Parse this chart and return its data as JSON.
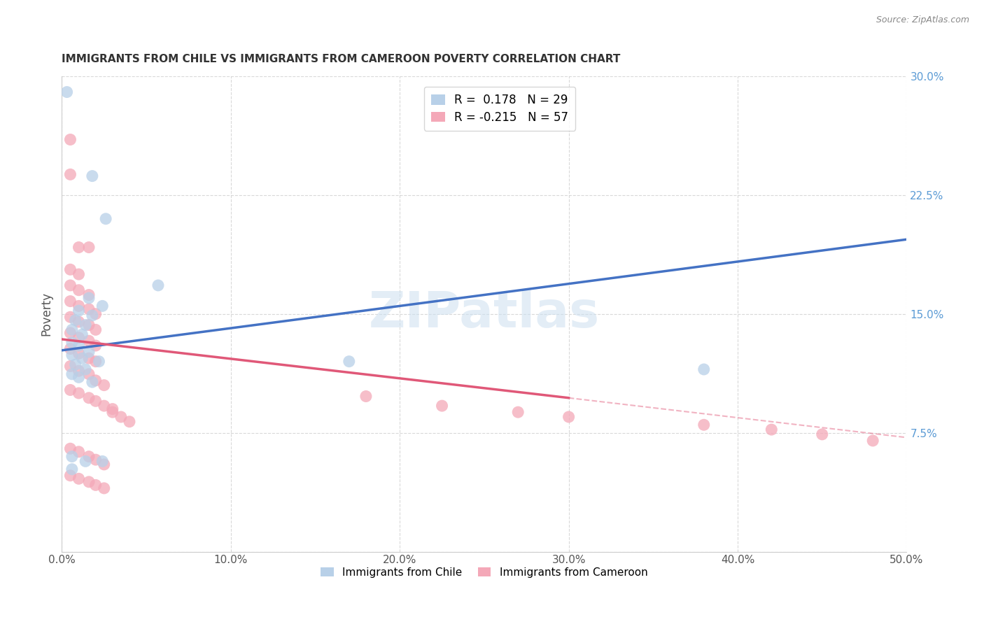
{
  "title": "IMMIGRANTS FROM CHILE VS IMMIGRANTS FROM CAMEROON POVERTY CORRELATION CHART",
  "source": "Source: ZipAtlas.com",
  "ylabel": "Poverty",
  "xlim": [
    0.0,
    0.5
  ],
  "ylim": [
    0.0,
    0.3
  ],
  "xticks": [
    0.0,
    0.1,
    0.2,
    0.3,
    0.4,
    0.5
  ],
  "xtick_labels": [
    "0.0%",
    "10.0%",
    "20.0%",
    "30.0%",
    "40.0%",
    "50.0%"
  ],
  "yticks": [
    0.0,
    0.075,
    0.15,
    0.225,
    0.3
  ],
  "ytick_labels": [
    "",
    "7.5%",
    "15.0%",
    "22.5%",
    "30.0%"
  ],
  "watermark": "ZIPatlas",
  "chile_color": "#b8d0e8",
  "chile_line_color": "#4472c4",
  "cameroon_color": "#f4a8b8",
  "cameroon_line_color": "#e05878",
  "chile_line": {
    "x0": 0.0,
    "y0": 0.127,
    "x1": 0.5,
    "y1": 0.197
  },
  "cameroon_line_solid": {
    "x0": 0.0,
    "y0": 0.134,
    "x1": 0.3,
    "y1": 0.097
  },
  "cameroon_line_dash": {
    "x0": 0.3,
    "y0": 0.097,
    "x1": 0.5,
    "y1": 0.072
  },
  "chile_points": [
    [
      0.003,
      0.29
    ],
    [
      0.018,
      0.237
    ],
    [
      0.026,
      0.21
    ],
    [
      0.057,
      0.168
    ],
    [
      0.016,
      0.16
    ],
    [
      0.024,
      0.155
    ],
    [
      0.01,
      0.152
    ],
    [
      0.018,
      0.149
    ],
    [
      0.008,
      0.146
    ],
    [
      0.014,
      0.143
    ],
    [
      0.006,
      0.14
    ],
    [
      0.012,
      0.137
    ],
    [
      0.006,
      0.132
    ],
    [
      0.01,
      0.13
    ],
    [
      0.016,
      0.126
    ],
    [
      0.006,
      0.124
    ],
    [
      0.012,
      0.122
    ],
    [
      0.022,
      0.12
    ],
    [
      0.008,
      0.118
    ],
    [
      0.014,
      0.115
    ],
    [
      0.006,
      0.112
    ],
    [
      0.01,
      0.11
    ],
    [
      0.018,
      0.107
    ],
    [
      0.006,
      0.06
    ],
    [
      0.014,
      0.057
    ],
    [
      0.024,
      0.057
    ],
    [
      0.006,
      0.052
    ],
    [
      0.17,
      0.12
    ],
    [
      0.38,
      0.115
    ]
  ],
  "cameroon_points": [
    [
      0.005,
      0.26
    ],
    [
      0.005,
      0.238
    ],
    [
      0.01,
      0.192
    ],
    [
      0.016,
      0.192
    ],
    [
      0.005,
      0.178
    ],
    [
      0.01,
      0.175
    ],
    [
      0.005,
      0.168
    ],
    [
      0.01,
      0.165
    ],
    [
      0.016,
      0.162
    ],
    [
      0.005,
      0.158
    ],
    [
      0.01,
      0.155
    ],
    [
      0.016,
      0.153
    ],
    [
      0.02,
      0.15
    ],
    [
      0.005,
      0.148
    ],
    [
      0.01,
      0.145
    ],
    [
      0.016,
      0.143
    ],
    [
      0.02,
      0.14
    ],
    [
      0.005,
      0.138
    ],
    [
      0.01,
      0.135
    ],
    [
      0.016,
      0.133
    ],
    [
      0.02,
      0.13
    ],
    [
      0.005,
      0.128
    ],
    [
      0.01,
      0.125
    ],
    [
      0.016,
      0.122
    ],
    [
      0.02,
      0.12
    ],
    [
      0.005,
      0.117
    ],
    [
      0.01,
      0.114
    ],
    [
      0.016,
      0.112
    ],
    [
      0.02,
      0.108
    ],
    [
      0.025,
      0.105
    ],
    [
      0.005,
      0.102
    ],
    [
      0.01,
      0.1
    ],
    [
      0.016,
      0.097
    ],
    [
      0.02,
      0.095
    ],
    [
      0.025,
      0.092
    ],
    [
      0.03,
      0.09
    ],
    [
      0.005,
      0.065
    ],
    [
      0.01,
      0.063
    ],
    [
      0.016,
      0.06
    ],
    [
      0.02,
      0.058
    ],
    [
      0.025,
      0.055
    ],
    [
      0.005,
      0.048
    ],
    [
      0.01,
      0.046
    ],
    [
      0.016,
      0.044
    ],
    [
      0.02,
      0.042
    ],
    [
      0.025,
      0.04
    ],
    [
      0.18,
      0.098
    ],
    [
      0.225,
      0.092
    ],
    [
      0.27,
      0.088
    ],
    [
      0.3,
      0.085
    ],
    [
      0.38,
      0.08
    ],
    [
      0.42,
      0.077
    ],
    [
      0.45,
      0.074
    ],
    [
      0.48,
      0.07
    ],
    [
      0.03,
      0.088
    ],
    [
      0.035,
      0.085
    ],
    [
      0.04,
      0.082
    ]
  ]
}
